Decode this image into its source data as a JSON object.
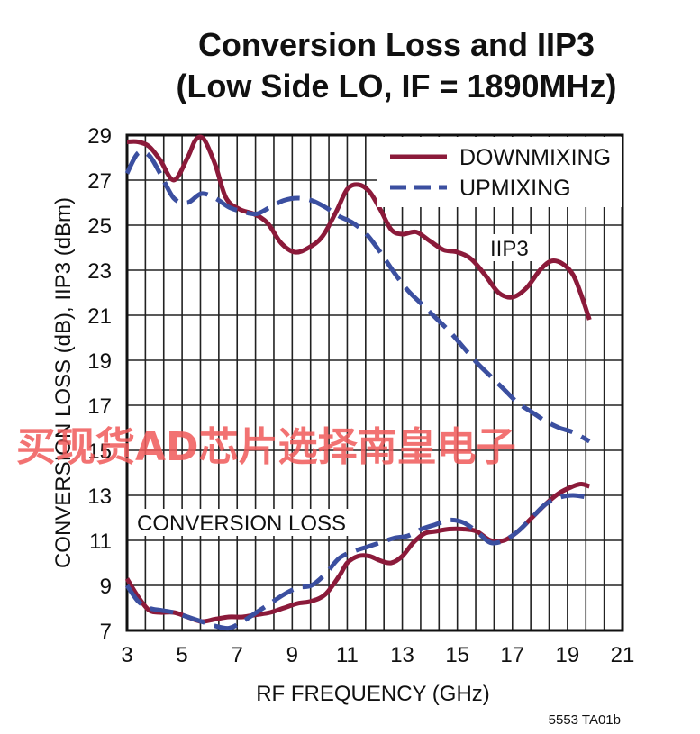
{
  "chart_data": {
    "type": "line",
    "title": "Conversion Loss and IIP3",
    "subtitle": "(Low Side LO, IF = 1890MHz)",
    "xlabel": "RF FREQUENCY (GHz)",
    "ylabel": "CONVERSION LOSS (dB), IIP3 (dBm)",
    "xlim": [
      3,
      21
    ],
    "ylim": [
      7,
      29
    ],
    "x_ticks": [
      3,
      5,
      7,
      9,
      11,
      13,
      15,
      17,
      19,
      21
    ],
    "y_ticks": [
      7,
      9,
      11,
      13,
      15,
      17,
      19,
      21,
      23,
      25,
      27,
      29
    ],
    "grid": true,
    "legend": {
      "position": "top-right",
      "entries": [
        {
          "name": "DOWNMIXING",
          "color": "#8b1a3a",
          "style": "solid"
        },
        {
          "name": "UPMIXING",
          "color": "#3b4fa0",
          "style": "dashed"
        }
      ]
    },
    "annotations": [
      {
        "text": "IIP3",
        "x": 16.8,
        "y": 23.8
      },
      {
        "text": "CONVERSION LOSS",
        "x": 7.3,
        "y": 11.7
      }
    ],
    "series": [
      {
        "name": "DOWNMIXING",
        "group": "IIP3",
        "color": "#8b1a3a",
        "style": "solid",
        "x": [
          3.0,
          3.4,
          3.8,
          4.2,
          4.7,
          5.2,
          5.5,
          5.8,
          6.2,
          6.6,
          7.1,
          7.6,
          8.1,
          8.6,
          9.1,
          9.6,
          10.1,
          10.6,
          11.0,
          11.4,
          11.8,
          12.2,
          12.6,
          13.0,
          13.5,
          14.0,
          14.5,
          15.0,
          15.5,
          16.0,
          16.5,
          17.0,
          17.5,
          18.0,
          18.4,
          18.8,
          19.2,
          19.5,
          19.8
        ],
        "y": [
          28.7,
          28.7,
          28.5,
          27.9,
          27.0,
          28.0,
          28.8,
          28.8,
          27.7,
          26.2,
          25.7,
          25.5,
          25.1,
          24.2,
          23.8,
          24.0,
          24.5,
          25.6,
          26.6,
          26.8,
          26.5,
          25.7,
          24.8,
          24.6,
          24.7,
          24.3,
          23.9,
          23.8,
          23.5,
          22.8,
          22.0,
          21.8,
          22.2,
          23.0,
          23.4,
          23.3,
          22.8,
          21.9,
          20.8
        ]
      },
      {
        "name": "UPMIXING",
        "group": "IIP3",
        "color": "#3b4fa0",
        "style": "dashed",
        "x": [
          3.0,
          3.4,
          3.8,
          4.2,
          4.7,
          5.2,
          5.7,
          6.2,
          6.7,
          7.2,
          7.7,
          8.2,
          8.7,
          9.2,
          9.7,
          10.2,
          10.7,
          11.2,
          11.7,
          12.2,
          12.7,
          13.2,
          13.7,
          14.2,
          14.7,
          15.2,
          15.7,
          16.2,
          16.7,
          17.2,
          17.7,
          18.2,
          18.7,
          19.2,
          19.8
        ],
        "y": [
          27.3,
          28.2,
          28.1,
          27.3,
          26.2,
          26.0,
          26.4,
          26.2,
          25.8,
          25.6,
          25.5,
          25.8,
          26.1,
          26.2,
          26.1,
          25.8,
          25.4,
          25.1,
          24.6,
          23.8,
          22.9,
          22.1,
          21.5,
          20.9,
          20.3,
          19.6,
          18.9,
          18.3,
          17.7,
          17.1,
          16.7,
          16.3,
          16.0,
          15.8,
          15.4
        ]
      },
      {
        "name": "DOWNMIXING",
        "group": "CONVERSION LOSS",
        "color": "#8b1a3a",
        "style": "solid",
        "x": [
          3.0,
          3.4,
          3.8,
          4.2,
          4.7,
          5.2,
          5.7,
          6.2,
          6.7,
          7.2,
          7.7,
          8.2,
          8.7,
          9.2,
          9.7,
          10.2,
          10.7,
          11.0,
          11.4,
          11.8,
          12.2,
          12.6,
          13.0,
          13.4,
          13.8,
          14.2,
          14.7,
          15.2,
          15.7,
          16.2,
          16.7,
          17.2,
          17.7,
          18.2,
          18.7,
          19.2,
          19.5,
          19.8
        ],
        "y": [
          9.3,
          8.5,
          7.9,
          7.8,
          7.8,
          7.6,
          7.4,
          7.5,
          7.6,
          7.6,
          7.7,
          7.8,
          8.0,
          8.2,
          8.3,
          8.6,
          9.4,
          10.0,
          10.3,
          10.3,
          10.1,
          10.0,
          10.3,
          10.9,
          11.3,
          11.4,
          11.5,
          11.5,
          11.4,
          11.0,
          11.0,
          11.4,
          12.0,
          12.6,
          13.1,
          13.4,
          13.5,
          13.4
        ]
      },
      {
        "name": "UPMIXING",
        "group": "CONVERSION LOSS",
        "color": "#3b4fa0",
        "style": "dashed",
        "x": [
          3.0,
          3.4,
          3.8,
          4.2,
          4.7,
          5.2,
          5.7,
          6.2,
          6.7,
          7.2,
          7.7,
          8.2,
          8.7,
          9.2,
          9.7,
          10.2,
          10.7,
          11.2,
          11.7,
          12.2,
          12.7,
          13.2,
          13.7,
          14.2,
          14.7,
          15.2,
          15.7,
          16.2,
          16.7,
          17.2,
          17.7,
          18.2,
          18.7,
          19.2,
          19.8
        ],
        "y": [
          9.0,
          8.3,
          8.0,
          7.9,
          7.8,
          7.6,
          7.4,
          7.2,
          7.1,
          7.4,
          7.8,
          8.2,
          8.6,
          8.9,
          9.0,
          9.5,
          10.2,
          10.5,
          10.7,
          10.9,
          11.1,
          11.2,
          11.5,
          11.7,
          11.9,
          11.8,
          11.4,
          10.9,
          11.0,
          11.4,
          12.0,
          12.6,
          12.9,
          13.0,
          12.9
        ]
      }
    ]
  },
  "figure_code": "5553 TA01b",
  "watermark_text": "买现货AD芯片选择南皇电子"
}
